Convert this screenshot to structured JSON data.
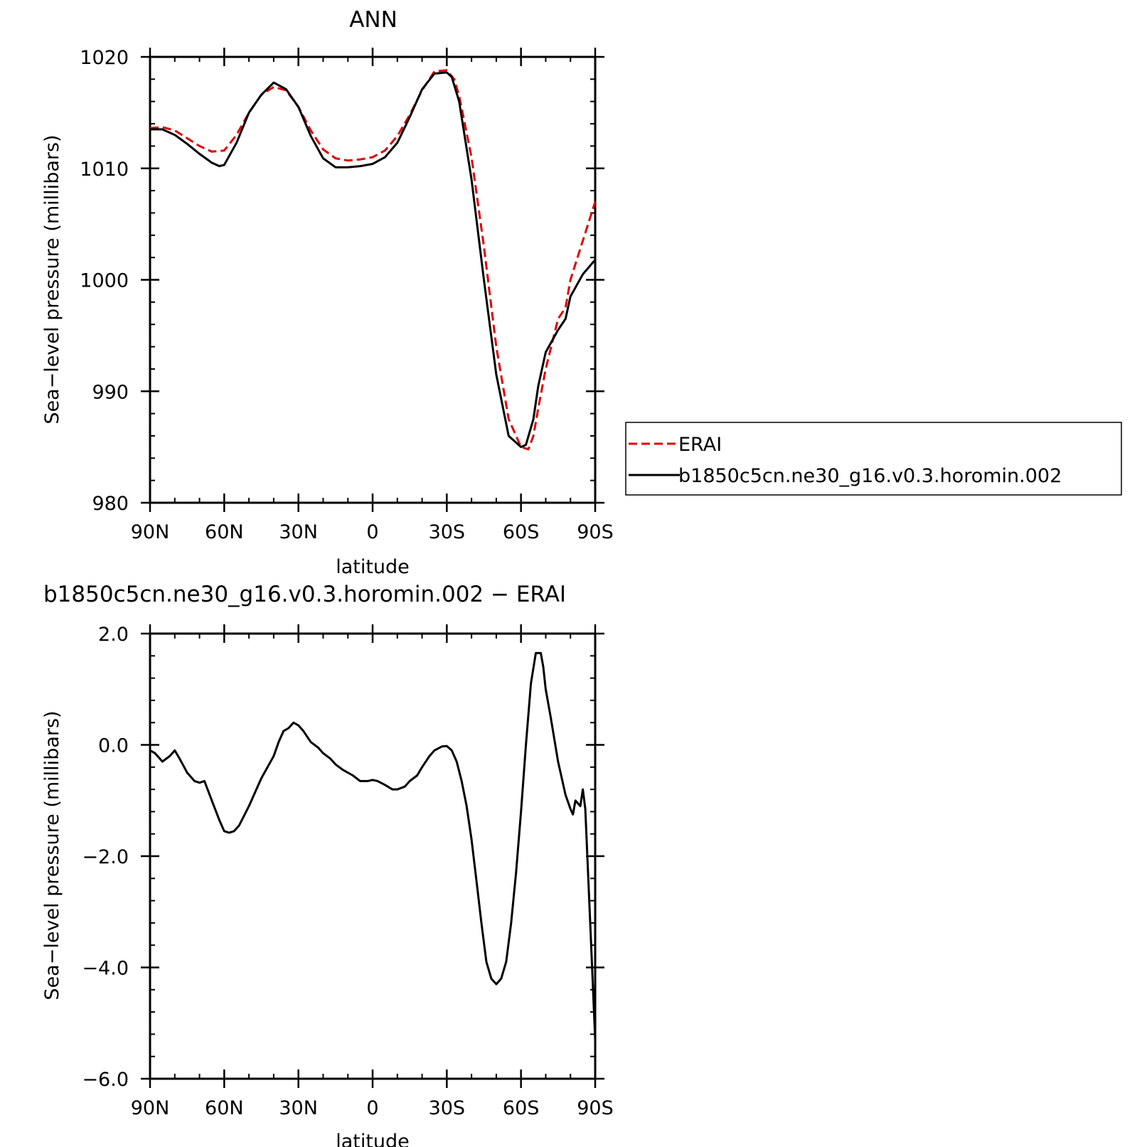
{
  "chart_data": [
    {
      "type": "line",
      "title": "ANN",
      "xlabel": "latitude",
      "ylabel": "Sea−level pressure (millibars)",
      "x_tick_labels": [
        "90N",
        "60N",
        "30N",
        "0",
        "30S",
        "60S",
        "90S"
      ],
      "x_tick_values": [
        90,
        60,
        30,
        0,
        -30,
        -60,
        -90
      ],
      "y_tick_labels": [
        "1020",
        "1010",
        "1000",
        "990",
        "980"
      ],
      "y_tick_values": [
        1020,
        1010,
        1000,
        990,
        980
      ],
      "xlim": [
        90,
        -90
      ],
      "ylim": [
        980,
        1020
      ],
      "legend": "outside-right",
      "series": [
        {
          "name": "ERAI",
          "color": "#e00000",
          "style": "dashed",
          "x": [
            90,
            85,
            80,
            75,
            70,
            65,
            60,
            55,
            50,
            45,
            40,
            35,
            30,
            25,
            20,
            15,
            10,
            5,
            0,
            -5,
            -10,
            -15,
            -20,
            -25,
            -30,
            -33,
            -35,
            -40,
            -45,
            -50,
            -55,
            -60,
            -63,
            -65,
            -67,
            -70,
            -75,
            -78,
            -80,
            -85,
            -90
          ],
          "values": [
            1013.6,
            1013.7,
            1013.4,
            1012.7,
            1012.0,
            1011.5,
            1011.6,
            1013.0,
            1015.0,
            1016.6,
            1017.3,
            1017.0,
            1015.5,
            1013.4,
            1011.7,
            1010.9,
            1010.7,
            1010.8,
            1011.0,
            1011.6,
            1012.9,
            1014.8,
            1017.0,
            1018.7,
            1018.8,
            1018.0,
            1016.5,
            1011.0,
            1003.0,
            994.0,
            987.5,
            985.0,
            984.8,
            986.0,
            988.5,
            992.0,
            996.5,
            997.5,
            1000.0,
            1003.5,
            1007.0
          ]
        },
        {
          "name": "b1850c5cn.ne30_g16.v0.3.horomin.002",
          "color": "#000000",
          "style": "solid",
          "x": [
            90,
            85,
            80,
            75,
            70,
            65,
            62,
            60,
            55,
            50,
            45,
            40,
            35,
            30,
            25,
            20,
            15,
            10,
            5,
            0,
            -5,
            -10,
            -15,
            -20,
            -25,
            -30,
            -32,
            -35,
            -40,
            -45,
            -50,
            -55,
            -60,
            -62,
            -65,
            -67,
            -70,
            -75,
            -78,
            -80,
            -85,
            -90
          ],
          "values": [
            1013.5,
            1013.5,
            1013.0,
            1012.2,
            1011.3,
            1010.5,
            1010.2,
            1010.3,
            1012.3,
            1015.0,
            1016.6,
            1017.7,
            1017.1,
            1015.5,
            1012.9,
            1010.9,
            1010.1,
            1010.1,
            1010.2,
            1010.4,
            1011.0,
            1012.3,
            1014.6,
            1017.1,
            1018.5,
            1018.6,
            1018.2,
            1016.0,
            1009.0,
            1000.0,
            991.5,
            986.0,
            985.0,
            985.2,
            987.5,
            990.5,
            993.5,
            995.5,
            996.5,
            998.5,
            1000.5,
            1001.8
          ]
        }
      ]
    },
    {
      "type": "line",
      "title": "b1850c5cn.ne30_g16.v0.3.horomin.002 − ERAI",
      "xlabel": "latitude",
      "ylabel": "Sea−level pressure (millibars)",
      "x_tick_labels": [
        "90N",
        "60N",
        "30N",
        "0",
        "30S",
        "60S",
        "90S"
      ],
      "x_tick_values": [
        90,
        60,
        30,
        0,
        -30,
        -60,
        -90
      ],
      "y_tick_labels": [
        "2.0",
        "0.0",
        "−2.0",
        "−4.0",
        "−6.0"
      ],
      "y_tick_values": [
        2,
        0,
        -2,
        -4,
        -6
      ],
      "xlim": [
        90,
        -90
      ],
      "ylim": [
        -6,
        2
      ],
      "series": [
        {
          "color": "#000000",
          "style": "solid",
          "x": [
            90,
            88,
            85,
            82,
            80,
            78,
            75,
            72,
            70,
            68,
            65,
            62,
            60,
            58,
            56,
            54,
            50,
            45,
            40,
            38,
            36,
            34,
            32,
            30,
            28,
            25,
            22,
            20,
            17,
            15,
            12,
            8,
            5,
            2,
            0,
            -2,
            -5,
            -8,
            -10,
            -13,
            -15,
            -18,
            -20,
            -23,
            -25,
            -28,
            -30,
            -32,
            -34,
            -36,
            -38,
            -40,
            -42,
            -44,
            -46,
            -48,
            -50,
            -52,
            -54,
            -56,
            -58,
            -60,
            -62,
            -64,
            -66,
            -68,
            -69,
            -70,
            -72,
            -75,
            -78,
            -80,
            -81,
            -82,
            -84,
            -85,
            -86,
            -88,
            -90
          ],
          "values": [
            -0.1,
            -0.15,
            -0.3,
            -0.2,
            -0.1,
            -0.25,
            -0.5,
            -0.65,
            -0.68,
            -0.65,
            -1.0,
            -1.35,
            -1.55,
            -1.58,
            -1.55,
            -1.45,
            -1.1,
            -0.6,
            -0.2,
            0.05,
            0.25,
            0.3,
            0.4,
            0.35,
            0.25,
            0.05,
            -0.05,
            -0.15,
            -0.25,
            -0.35,
            -0.45,
            -0.55,
            -0.65,
            -0.65,
            -0.63,
            -0.65,
            -0.72,
            -0.8,
            -0.8,
            -0.75,
            -0.65,
            -0.55,
            -0.4,
            -0.2,
            -0.1,
            -0.03,
            -0.02,
            -0.1,
            -0.3,
            -0.65,
            -1.1,
            -1.7,
            -2.45,
            -3.2,
            -3.9,
            -4.2,
            -4.3,
            -4.2,
            -3.9,
            -3.2,
            -2.3,
            -1.2,
            0.0,
            1.1,
            1.65,
            1.65,
            1.4,
            1.0,
            0.5,
            -0.3,
            -0.9,
            -1.15,
            -1.25,
            -1.0,
            -1.1,
            -0.8,
            -1.15,
            -3.2,
            -5.3
          ]
        }
      ]
    }
  ]
}
